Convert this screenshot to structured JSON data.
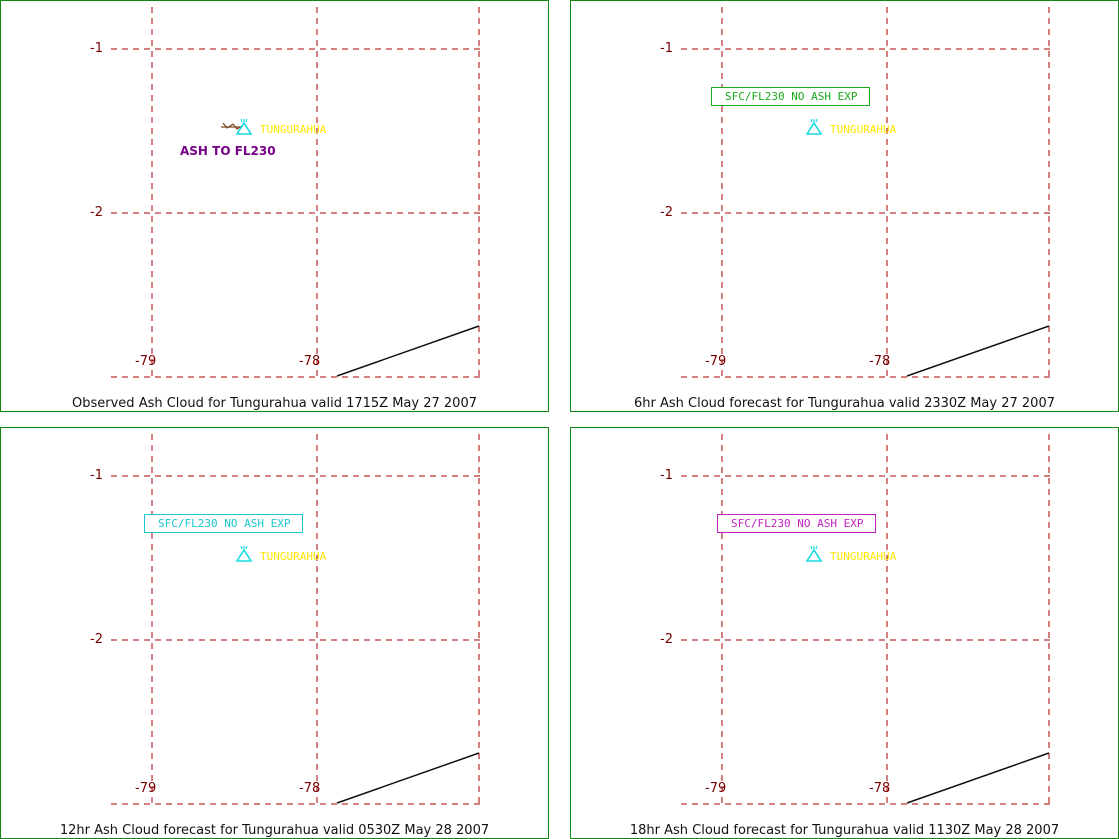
{
  "colors": {
    "border": "#118811",
    "grid": "#aa0000",
    "tick_label": "#7a0000",
    "volcano_icon": "#18d8e0",
    "volcano_name": "#ffe600",
    "coastline": "#111111"
  },
  "panels": [
    {
      "caption": "Observed Ash Cloud for Tungurahua valid 1715Z May 27 2007",
      "volcano_name": "TUNGURAHUA",
      "ash_label": "ASH TO FL230",
      "ash_label_color": "#770088",
      "box_text": "",
      "box_color": "",
      "lat_labels": [
        "-1",
        "-2"
      ],
      "lon_labels": [
        "-79",
        "-78"
      ]
    },
    {
      "caption": "6hr Ash Cloud forecast for Tungurahua valid 2330Z May 27 2007",
      "volcano_name": "TUNGURAHUA",
      "ash_label": "",
      "ash_label_color": "",
      "box_text": "SFC/FL230 NO ASH EXP",
      "box_color": "#1aaa1a",
      "lat_labels": [
        "-1",
        "-2"
      ],
      "lon_labels": [
        "-79",
        "-78"
      ]
    },
    {
      "caption": "12hr Ash Cloud forecast for Tungurahua valid 0530Z May 28 2007",
      "volcano_name": "TUNGURAHUA",
      "ash_label": "",
      "ash_label_color": "",
      "box_text": "SFC/FL230 NO ASH EXP",
      "box_color": "#18c8d0",
      "lat_labels": [
        "-1",
        "-2"
      ],
      "lon_labels": [
        "-79",
        "-78"
      ]
    },
    {
      "caption": "18hr Ash Cloud forecast for Tungurahua valid 1130Z May 28 2007",
      "volcano_name": "TUNGURAHUA",
      "ash_label": "",
      "ash_label_color": "",
      "box_text": "SFC/FL230 NO ASH EXP",
      "box_color": "#c022c0",
      "lat_labels": [
        "-1",
        "-2"
      ],
      "lon_labels": [
        "-79",
        "-78"
      ]
    }
  ]
}
